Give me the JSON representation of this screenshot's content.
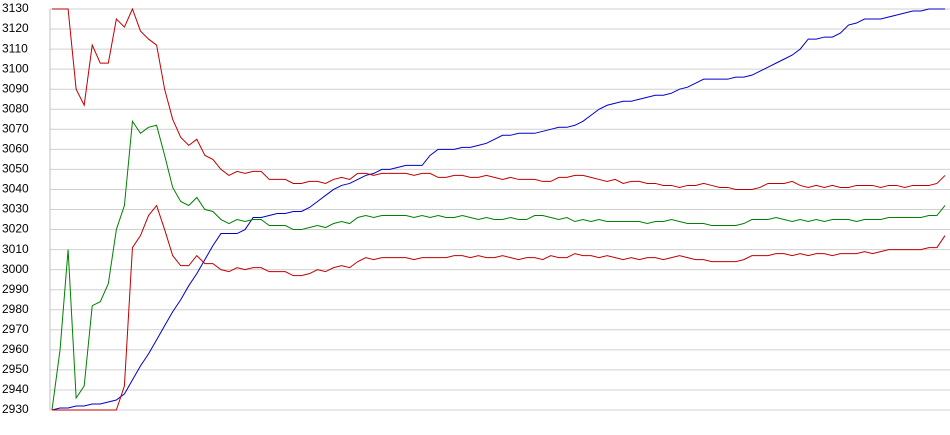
{
  "chart_data": {
    "type": "line",
    "ylim": [
      2930,
      3130
    ],
    "yticks": [
      2930,
      2940,
      2950,
      2960,
      2970,
      2980,
      2990,
      3000,
      3010,
      3020,
      3030,
      3040,
      3050,
      3060,
      3070,
      3080,
      3090,
      3100,
      3110,
      3120,
      3130
    ],
    "grid": true,
    "series": [
      {
        "color": "#0000c8",
        "values": [
          2930,
          2931,
          2931,
          2932,
          2932,
          2933,
          2933,
          2934,
          2935,
          2938,
          2945,
          2952,
          2958,
          2965,
          2972,
          2979,
          2985,
          2992,
          2998,
          3005,
          3012,
          3018,
          3018,
          3018,
          3020,
          3026,
          3026,
          3027,
          3028,
          3028,
          3029,
          3029,
          3031,
          3034,
          3037,
          3040,
          3042,
          3043,
          3045,
          3047,
          3048,
          3050,
          3050,
          3051,
          3052,
          3052,
          3052,
          3057,
          3060,
          3060,
          3060,
          3061,
          3061,
          3062,
          3063,
          3065,
          3067,
          3067,
          3068,
          3068,
          3068,
          3069,
          3070,
          3071,
          3071,
          3072,
          3074,
          3077,
          3080,
          3082,
          3083,
          3084,
          3084,
          3085,
          3086,
          3087,
          3087,
          3088,
          3090,
          3091,
          3093,
          3095,
          3095,
          3095,
          3095,
          3096,
          3096,
          3097,
          3099,
          3101,
          3103,
          3105,
          3107,
          3110,
          3115,
          3115,
          3116,
          3116,
          3118,
          3122,
          3123,
          3125,
          3125,
          3125,
          3126,
          3127,
          3128,
          3129,
          3129,
          3130,
          3130,
          3130
        ]
      },
      {
        "color": "#c00000",
        "values": [
          3130,
          3130,
          3130,
          3090,
          3082,
          3112,
          3103,
          3103,
          3125,
          3121,
          3130,
          3119,
          3115,
          3112,
          3090,
          3075,
          3066,
          3062,
          3065,
          3057,
          3055,
          3050,
          3047,
          3049,
          3048,
          3049,
          3049,
          3045,
          3045,
          3045,
          3043,
          3043,
          3044,
          3044,
          3043,
          3045,
          3046,
          3045,
          3048,
          3048,
          3047,
          3048,
          3048,
          3048,
          3048,
          3047,
          3048,
          3048,
          3046,
          3046,
          3047,
          3047,
          3046,
          3046,
          3047,
          3046,
          3045,
          3046,
          3045,
          3045,
          3045,
          3044,
          3044,
          3046,
          3046,
          3047,
          3047,
          3046,
          3045,
          3044,
          3045,
          3043,
          3044,
          3044,
          3043,
          3043,
          3042,
          3042,
          3041,
          3042,
          3042,
          3043,
          3042,
          3041,
          3041,
          3040,
          3040,
          3040,
          3041,
          3043,
          3043,
          3043,
          3044,
          3042,
          3041,
          3042,
          3041,
          3042,
          3041,
          3041,
          3042,
          3042,
          3042,
          3041,
          3042,
          3042,
          3041,
          3042,
          3042,
          3042,
          3043,
          3047
        ]
      },
      {
        "color": "#008000",
        "values": [
          2930,
          2960,
          3010,
          2936,
          2942,
          2982,
          2984,
          2993,
          3020,
          3032,
          3074,
          3068,
          3071,
          3072,
          3057,
          3041,
          3034,
          3032,
          3036,
          3030,
          3029,
          3025,
          3023,
          3025,
          3024,
          3025,
          3025,
          3022,
          3022,
          3022,
          3020,
          3020,
          3021,
          3022,
          3021,
          3023,
          3024,
          3023,
          3026,
          3027,
          3026,
          3027,
          3027,
          3027,
          3027,
          3026,
          3027,
          3026,
          3027,
          3026,
          3026,
          3027,
          3026,
          3025,
          3026,
          3025,
          3025,
          3026,
          3025,
          3025,
          3027,
          3027,
          3026,
          3025,
          3026,
          3024,
          3025,
          3024,
          3025,
          3024,
          3024,
          3024,
          3024,
          3024,
          3023,
          3024,
          3024,
          3025,
          3024,
          3023,
          3023,
          3023,
          3022,
          3022,
          3022,
          3022,
          3023,
          3025,
          3025,
          3025,
          3026,
          3025,
          3024,
          3025,
          3024,
          3025,
          3024,
          3025,
          3025,
          3025,
          3024,
          3025,
          3025,
          3025,
          3026,
          3026,
          3026,
          3026,
          3026,
          3027,
          3027,
          3032
        ]
      },
      {
        "color": "#c00000",
        "values": [
          2930,
          2930,
          2930,
          2930,
          2930,
          2930,
          2930,
          2930,
          2930,
          2942,
          3011,
          3017,
          3027,
          3032,
          3020,
          3007,
          3002,
          3002,
          3007,
          3003,
          3003,
          3000,
          2999,
          3001,
          3000,
          3001,
          3001,
          2999,
          2999,
          2999,
          2997,
          2997,
          2998,
          3000,
          2999,
          3001,
          3002,
          3001,
          3004,
          3006,
          3005,
          3006,
          3006,
          3006,
          3006,
          3005,
          3006,
          3006,
          3006,
          3006,
          3007,
          3007,
          3006,
          3007,
          3006,
          3006,
          3007,
          3006,
          3005,
          3006,
          3006,
          3005,
          3007,
          3006,
          3006,
          3008,
          3007,
          3007,
          3006,
          3007,
          3006,
          3005,
          3006,
          3005,
          3006,
          3006,
          3005,
          3006,
          3007,
          3006,
          3005,
          3005,
          3004,
          3004,
          3004,
          3004,
          3005,
          3007,
          3007,
          3007,
          3008,
          3008,
          3007,
          3008,
          3007,
          3008,
          3008,
          3007,
          3008,
          3008,
          3008,
          3009,
          3008,
          3009,
          3010,
          3010,
          3010,
          3010,
          3010,
          3011,
          3011,
          3017
        ]
      }
    ]
  }
}
